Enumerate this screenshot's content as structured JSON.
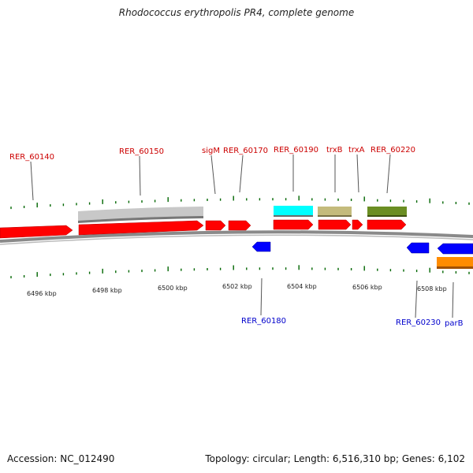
{
  "title": "Rhodococcus erythropolis PR4, complete genome",
  "footer": {
    "accession": "Accession: NC_012490",
    "summary": "Topology: circular; Length: 6,516,310 bp; Genes: 6,102"
  },
  "colors": {
    "forward_gene": "#ff0000",
    "reverse_gene": "#0000ff",
    "backbone": "#808080",
    "tick": "#006600",
    "cds_gray": "#c0c0c0",
    "cds_cyan": "#00ffff",
    "cds_tan": "#bdb76b",
    "cds_olive": "#6b8e23",
    "cds_orange": "#ff8c00",
    "label_top": "#cc0000",
    "label_bottom": "#0000cc"
  },
  "kbp_labels": [
    "6496 kbp",
    "6498 kbp",
    "6500 kbp",
    "6502 kbp",
    "6504 kbp",
    "6506 kbp",
    "6508 kbp"
  ],
  "top_labels": [
    "RER_60140",
    "RER_60150",
    "sigM",
    "RER_60170",
    "RER_60190",
    "trxB",
    "trxA",
    "RER_60220"
  ],
  "bottom_labels": [
    "RER_60180",
    "RER_60230",
    "parB"
  ]
}
